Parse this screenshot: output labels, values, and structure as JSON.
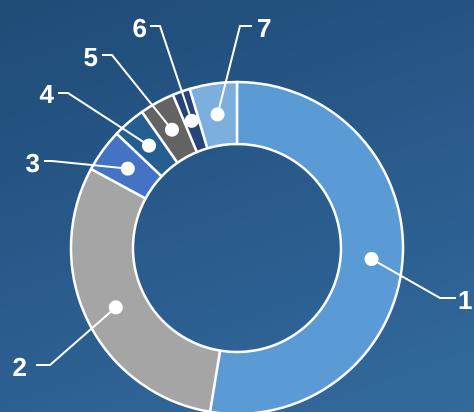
{
  "chart_data": {
    "type": "pie",
    "variant": "donut",
    "title": "",
    "categories": [
      "1",
      "2",
      "3",
      "4",
      "5",
      "6",
      "7"
    ],
    "values": [
      52.6,
      30.3,
      4.2,
      3.2,
      3.4,
      1.7,
      4.6
    ],
    "colors": [
      "#5b9bd5",
      "#a5a5a5",
      "#4472c4",
      "#255e91",
      "#636363",
      "#264478",
      "#7cafdd"
    ],
    "legend": "none",
    "start_angle_deg": 0,
    "direction": "clockwise"
  }
}
